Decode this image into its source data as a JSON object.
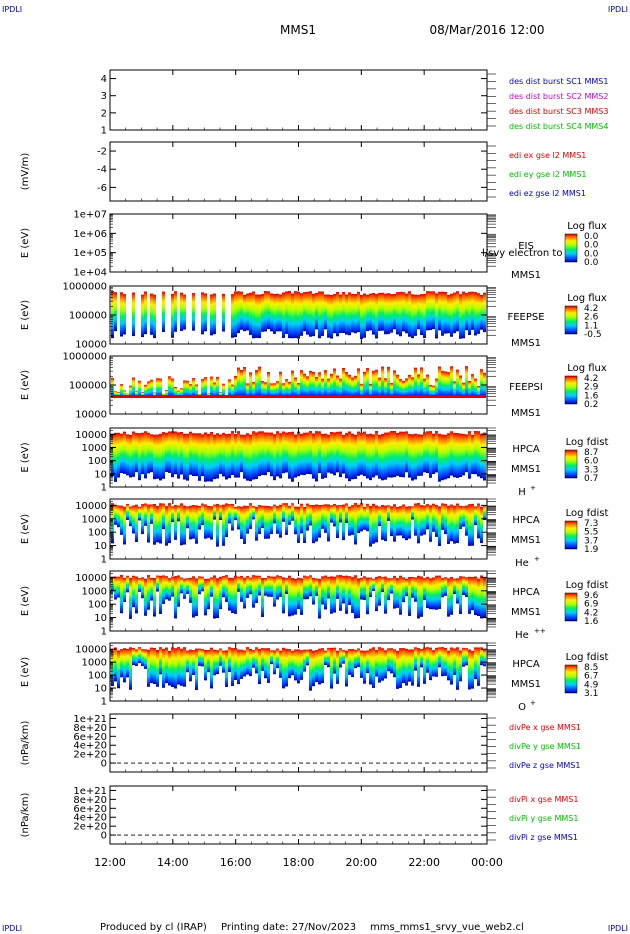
{
  "header": {
    "corner_left_top": "IPDLI",
    "corner_right_top": "IPDLI",
    "corner_left_bottom": "IPDLI",
    "corner_right_bottom": "IPDLI",
    "spacecraft": "MMS1",
    "date": "08/Mar/2016 12:00"
  },
  "footer": {
    "produced": "Produced by cl (IRAP)",
    "printing": "Printing date: 27/Nov/2023",
    "file": "mms_mms1_srvy_vue_web2.cl"
  },
  "time_axis": {
    "ticks": [
      "12:00",
      "14:00",
      "16:00",
      "18:00",
      "20:00",
      "22:00",
      "00:00"
    ],
    "hours": [
      12,
      14,
      16,
      18,
      20,
      22,
      24
    ]
  },
  "colors": {
    "blue": "#0000cc",
    "magenta": "#cc00cc",
    "red": "#dd0000",
    "green": "#00bb00"
  },
  "chart_data": [
    {
      "id": "p1",
      "type": "line",
      "ylim": [
        1,
        4.5
      ],
      "yticks": [
        "4",
        "3",
        "2",
        "1"
      ],
      "ytick_values": [
        4,
        3,
        2,
        1
      ],
      "ylabel": "",
      "legend": [
        {
          "text": "des dist burst SC1 MMS1",
          "color": "#0000cc"
        },
        {
          "text": "des dist burst SC2 MMS2",
          "color": "#cc00cc"
        },
        {
          "text": "des dist burst SC3 MMS3",
          "color": "#dd0000"
        },
        {
          "text": "des dist burst SC4 MMS4",
          "color": "#00bb00"
        }
      ]
    },
    {
      "id": "p2",
      "type": "line",
      "ylim": [
        -7.5,
        -1
      ],
      "yticks": [
        "-2",
        "-4",
        "-6"
      ],
      "ytick_values": [
        -2,
        -4,
        -6
      ],
      "ylabel": "(mV/m)",
      "legend": [
        {
          "text": "edi ex gse l2 MMS1",
          "color": "#dd0000"
        },
        {
          "text": "edi ey gse l2 MMS1",
          "color": "#00bb00"
        },
        {
          "text": "edi ez gse l2 MMS1",
          "color": "#0000cc"
        }
      ]
    },
    {
      "id": "p3",
      "type": "heatmap",
      "ylim": [
        10000,
        10000000
      ],
      "yticks": [
        "1e+07",
        "1e+06",
        "1e+05",
        "1e+04"
      ],
      "ytick_values": [
        10000000,
        1000000,
        100000,
        10000
      ],
      "ylabel": "E (eV)",
      "instrument": [
        "EIS",
        "MMS1"
      ],
      "extra_label": "l/svy electron to",
      "colorbar": {
        "title": "Log flux",
        "labels": [
          "0.0",
          "0.0",
          "0.0",
          "0.0"
        ]
      }
    },
    {
      "id": "p4",
      "type": "heatmap",
      "ylim": [
        10000,
        1000000
      ],
      "yticks": [
        "1000000",
        "100000",
        "10000"
      ],
      "ytick_values": [
        1000000,
        100000,
        10000
      ],
      "ylabel": "E (eV)",
      "instrument": [
        "FEEPSE",
        "MMS1"
      ],
      "colorbar": {
        "title": "Log flux",
        "labels": [
          "4.2",
          "2.6",
          "1.1",
          "-0.5"
        ]
      }
    },
    {
      "id": "p5",
      "type": "heatmap",
      "ylim": [
        10000,
        1000000
      ],
      "yticks": [
        "1000000",
        "100000",
        "10000"
      ],
      "ytick_values": [
        1000000,
        100000,
        10000
      ],
      "ylabel": "E (eV)",
      "instrument": [
        "FEEPSI",
        "MMS1"
      ],
      "colorbar": {
        "title": "Log flux",
        "labels": [
          "4.2",
          "2.9",
          "1.6",
          "0.2"
        ]
      }
    },
    {
      "id": "p6",
      "type": "heatmap",
      "ylim": [
        1,
        30000
      ],
      "yticks": [
        "10000",
        "1000",
        "100",
        "10",
        "1"
      ],
      "ytick_values": [
        10000,
        1000,
        100,
        10,
        1
      ],
      "ylabel": "E (eV)",
      "instrument": [
        "HPCA",
        "MMS1"
      ],
      "species": "H",
      "species_sup": "+",
      "colorbar": {
        "title": "Log fdist",
        "labels": [
          "8.7",
          "6.0",
          "3.3",
          "0.7"
        ]
      }
    },
    {
      "id": "p7",
      "type": "heatmap",
      "ylim": [
        1,
        30000
      ],
      "yticks": [
        "10000",
        "1000",
        "100",
        "10",
        "1"
      ],
      "ytick_values": [
        10000,
        1000,
        100,
        10,
        1
      ],
      "ylabel": "E (eV)",
      "instrument": [
        "HPCA",
        "MMS1"
      ],
      "species": "He",
      "species_sup": "+",
      "colorbar": {
        "title": "Log fdist",
        "labels": [
          "7.3",
          "5.5",
          "3.7",
          "1.9"
        ]
      }
    },
    {
      "id": "p8",
      "type": "heatmap",
      "ylim": [
        1,
        30000
      ],
      "yticks": [
        "10000",
        "1000",
        "100",
        "10",
        "1"
      ],
      "ytick_values": [
        10000,
        1000,
        100,
        10,
        1
      ],
      "ylabel": "E (eV)",
      "instrument": [
        "HPCA",
        "MMS1"
      ],
      "species": "He",
      "species_sup": "++",
      "colorbar": {
        "title": "Log fdist",
        "labels": [
          "9.6",
          "6.9",
          "4.2",
          "1.6"
        ]
      }
    },
    {
      "id": "p9",
      "type": "heatmap",
      "ylim": [
        1,
        30000
      ],
      "yticks": [
        "10000",
        "1000",
        "100",
        "10",
        "1"
      ],
      "ytick_values": [
        10000,
        1000,
        100,
        10,
        1
      ],
      "ylabel": "E (eV)",
      "instrument": [
        "HPCA",
        "MMS1"
      ],
      "species": "O",
      "species_sup": "+",
      "colorbar": {
        "title": "Log fdist",
        "labels": [
          "8.5",
          "6.7",
          "4.9",
          "3.1"
        ]
      }
    },
    {
      "id": "p10",
      "type": "line",
      "ylim": [
        -2e+20,
        1.1e+21
      ],
      "yticks": [
        "1e+21",
        "8e+20",
        "6e+20",
        "4e+20",
        "2e+20",
        "0"
      ],
      "ytick_values": [
        1e+21,
        8e+20,
        6e+20,
        4e+20,
        2e+20,
        0
      ],
      "ylabel": "(nPa/km)",
      "zero_line": true,
      "legend": [
        {
          "text": "divPe x gse MMS1",
          "color": "#dd0000"
        },
        {
          "text": "divPe y gse MMS1",
          "color": "#00bb00"
        },
        {
          "text": "divPe z gse MMS1",
          "color": "#0000cc"
        }
      ]
    },
    {
      "id": "p11",
      "type": "line",
      "ylim": [
        -2e+20,
        1.1e+21
      ],
      "yticks": [
        "1e+21",
        "8e+20",
        "6e+20",
        "4e+20",
        "2e+20",
        "0"
      ],
      "ytick_values": [
        1e+21,
        8e+20,
        6e+20,
        4e+20,
        2e+20,
        0
      ],
      "ylabel": "(nPa/km)",
      "zero_line": true,
      "legend": [
        {
          "text": "divPi x gse MMS1",
          "color": "#dd0000"
        },
        {
          "text": "divPi y gse MMS1",
          "color": "#00bb00"
        },
        {
          "text": "divPi z gse MMS1",
          "color": "#0000cc"
        }
      ]
    }
  ]
}
